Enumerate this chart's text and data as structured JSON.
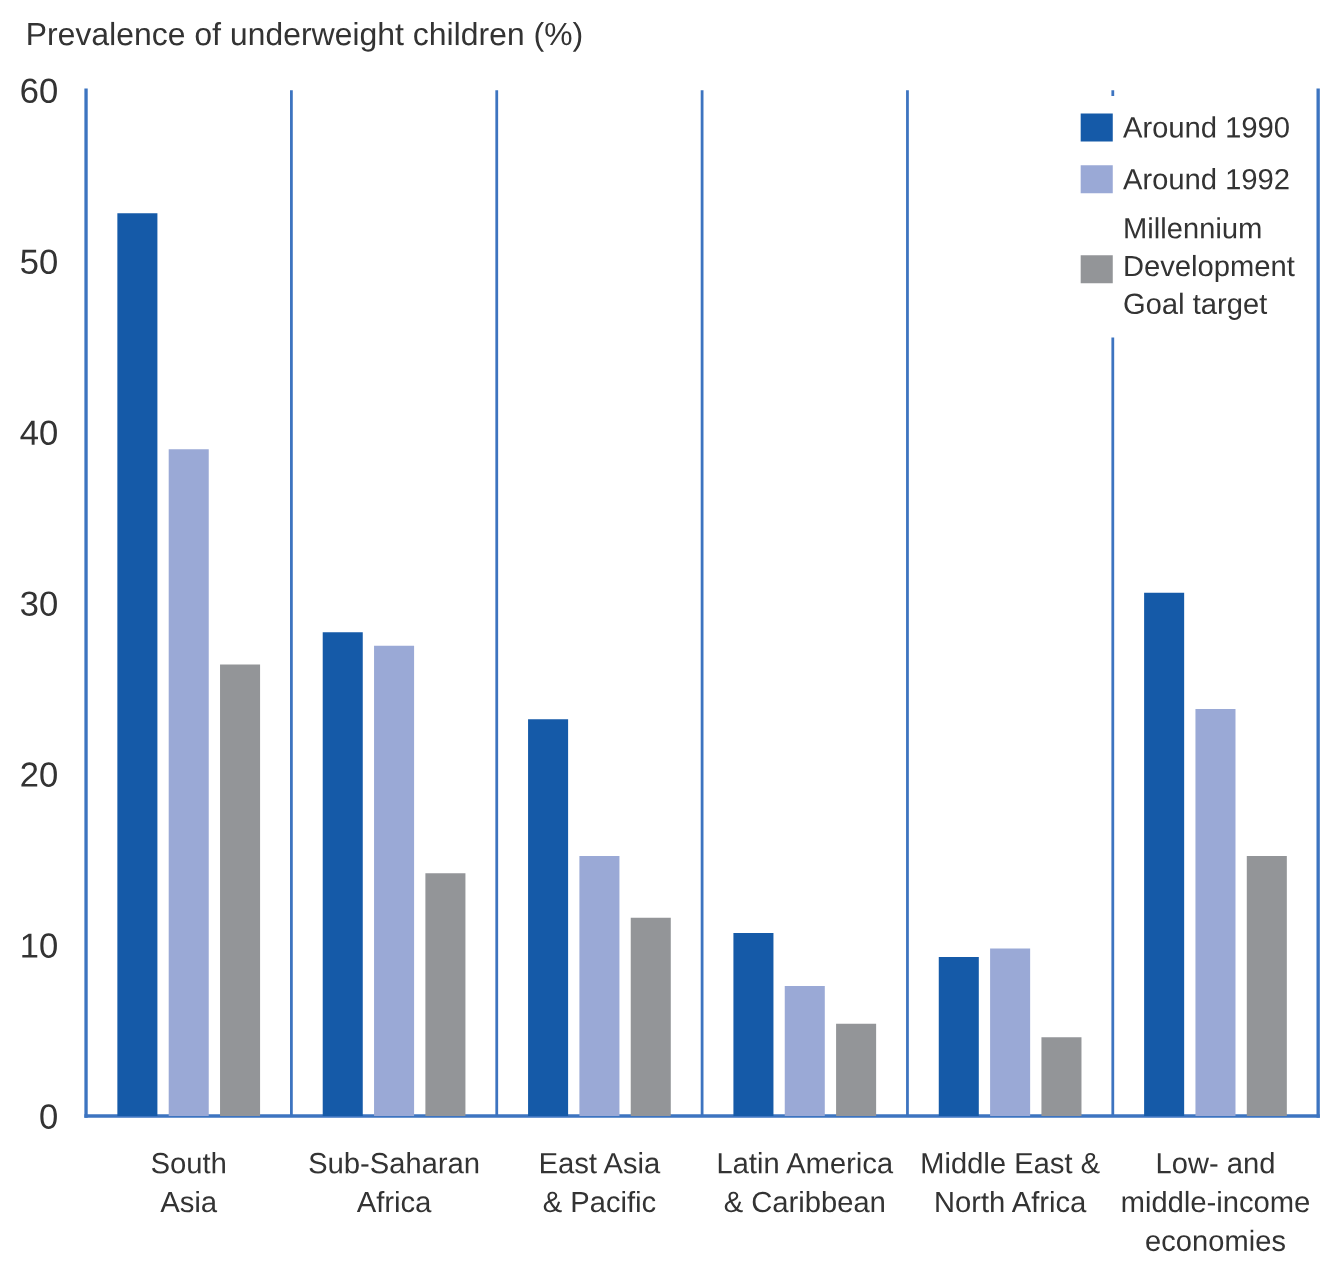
{
  "chart_data": {
    "type": "bar",
    "ylabel": "Prevalence of underweight children (%)",
    "categories": [
      "South\nAsia",
      "Sub-Saharan\nAfrica",
      "East Asia\n& Pacific",
      "Latin America\n& Caribbean",
      "Middle East &\nNorth Africa",
      "Low- and\nmiddle-income\neconomies"
    ],
    "series": [
      {
        "name": "Around 1990",
        "color": "#155aa8",
        "values": [
          52.8,
          28.3,
          23.2,
          10.7,
          9.3,
          30.6
        ]
      },
      {
        "name": "Around 1992",
        "color": "#9aa9d6",
        "values": [
          39.0,
          27.5,
          15.2,
          7.6,
          9.8,
          23.8
        ]
      },
      {
        "name": "Millennium\nDevelopment\nGoal target",
        "color": "#939598",
        "values": [
          26.4,
          14.2,
          11.6,
          5.4,
          4.6,
          15.2
        ]
      }
    ],
    "ylim": [
      0,
      60
    ],
    "yticks": [
      0,
      10,
      20,
      30,
      40,
      50,
      60
    ],
    "grid": "x",
    "legend": "top right"
  }
}
